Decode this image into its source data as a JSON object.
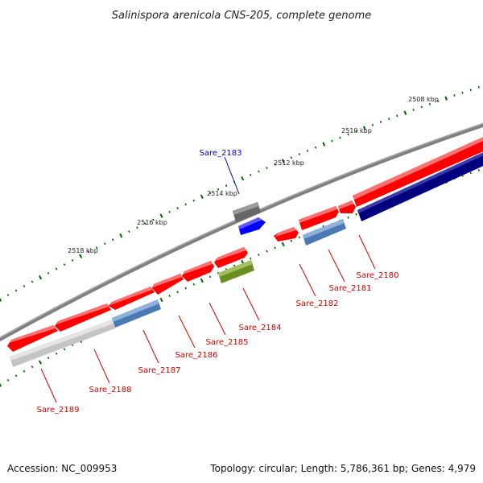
{
  "title": "Salinispora arenicola CNS-205, complete genome",
  "footer": {
    "accession": "Accession: NC_009953",
    "summary": "Topology: circular; Length: 5,786,361 bp; Genes: 4,979"
  },
  "scale": {
    "ticks": [
      "2508 kbp",
      "2510 kbp",
      "2512 kbp",
      "2514 kbp",
      "2516 kbp",
      "2518 kbp"
    ]
  },
  "colors": {
    "cds": "#ff0000",
    "steelblue": "#4a7ab4",
    "olive": "#6b8e23",
    "navy": "#00007f",
    "gray": "#777777",
    "lightgray": "#c8c8c8",
    "blue": "#0000ff",
    "tick": "#006400",
    "label_red": "#d40000",
    "label_blue": "#0000cc"
  },
  "genes": [
    {
      "label": "Sare_2180"
    },
    {
      "label": "Sare_2181"
    },
    {
      "label": "Sare_2182"
    },
    {
      "label": "Sare_2183"
    },
    {
      "label": "Sare_2184"
    },
    {
      "label": "Sare_2185"
    },
    {
      "label": "Sare_2186"
    },
    {
      "label": "Sare_2187"
    },
    {
      "label": "Sare_2188"
    },
    {
      "label": "Sare_2189"
    }
  ]
}
